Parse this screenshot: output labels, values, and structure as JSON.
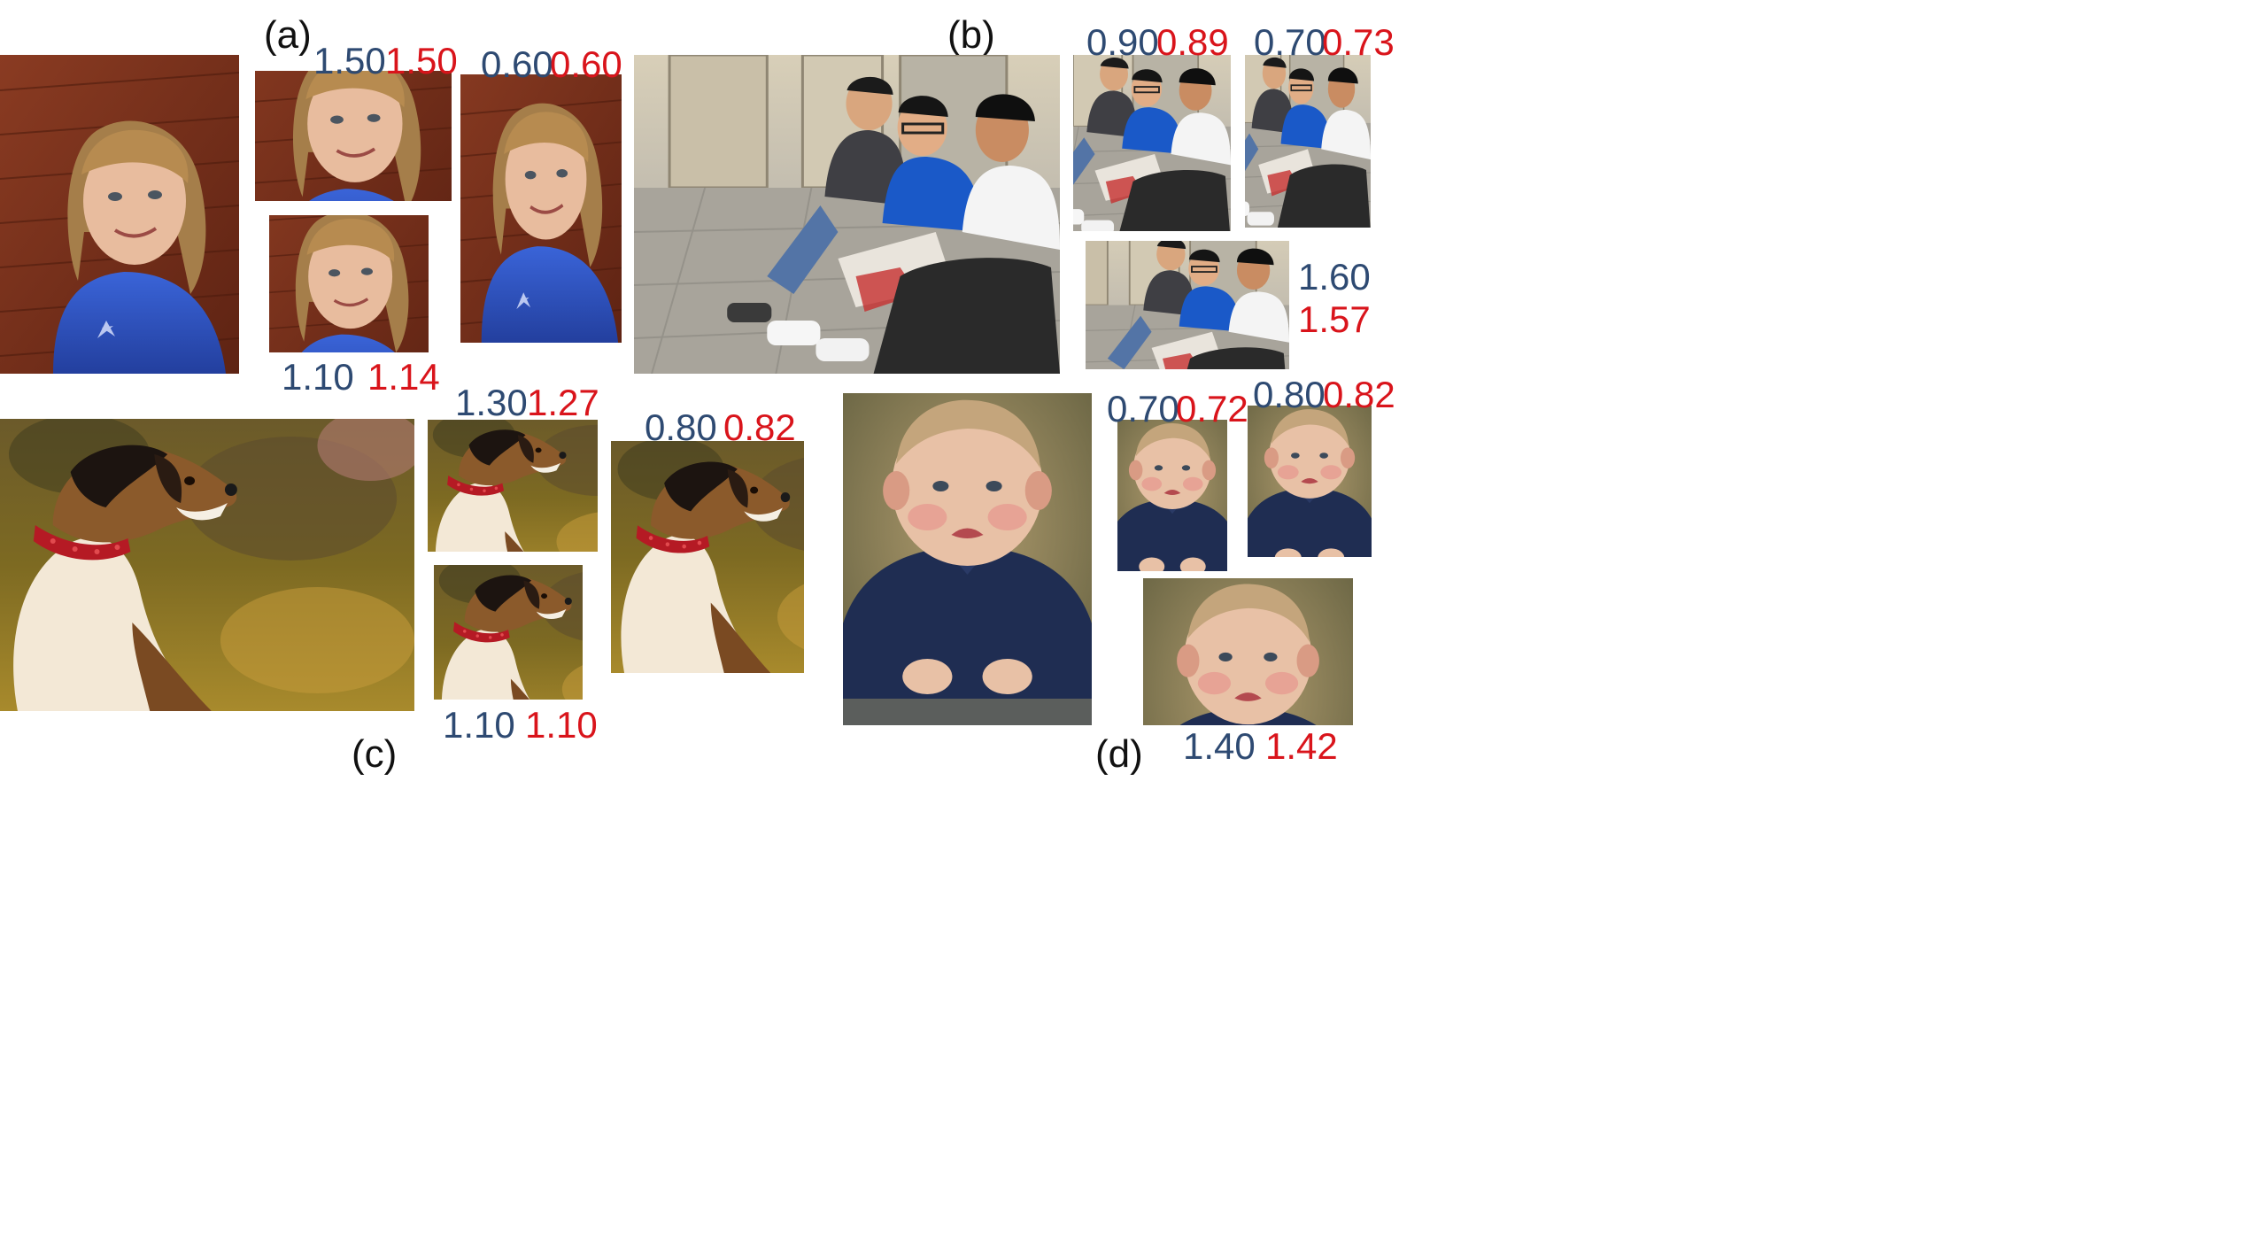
{
  "colors": {
    "ratio_a_color": "#2e4a72",
    "ratio_b_color": "#d9141b"
  },
  "panels": {
    "a": {
      "label": "(a)",
      "original": {
        "image": "girl-portrait"
      },
      "crops": [
        {
          "image": "girl-portrait",
          "blue": "1.50",
          "red": "1.50"
        },
        {
          "image": "girl-portrait",
          "blue": "0.60",
          "red": "0.60"
        },
        {
          "image": "girl-portrait",
          "blue": "1.10",
          "red": "1.14"
        }
      ]
    },
    "b": {
      "label": "(b)",
      "original": {
        "image": "three-young-men-sitting"
      },
      "crops": [
        {
          "image": "three-young-men-sitting",
          "blue": "0.90",
          "red": "0.89"
        },
        {
          "image": "three-young-men-sitting",
          "blue": "0.70",
          "red": "0.73"
        },
        {
          "image": "three-young-men-sitting",
          "blue": "1.60",
          "red": "1.57"
        }
      ]
    },
    "c": {
      "label": "(c)",
      "original": {
        "image": "dog-with-red-collar"
      },
      "crops": [
        {
          "image": "dog-with-red-collar",
          "blue": "1.30",
          "red": "1.27"
        },
        {
          "image": "dog-with-red-collar",
          "blue": "0.80",
          "red": "0.82"
        },
        {
          "image": "dog-with-red-collar",
          "blue": "1.10",
          "red": "1.10"
        }
      ]
    },
    "d": {
      "label": "(d)",
      "original": {
        "image": "toddler-in-navy-sweater"
      },
      "crops": [
        {
          "image": "toddler-in-navy-sweater",
          "blue": "0.70",
          "red": "0.72"
        },
        {
          "image": "toddler-in-navy-sweater",
          "blue": "0.80",
          "red": "0.82"
        },
        {
          "image": "toddler-in-navy-sweater",
          "blue": "1.40",
          "red": "1.42"
        }
      ]
    }
  }
}
